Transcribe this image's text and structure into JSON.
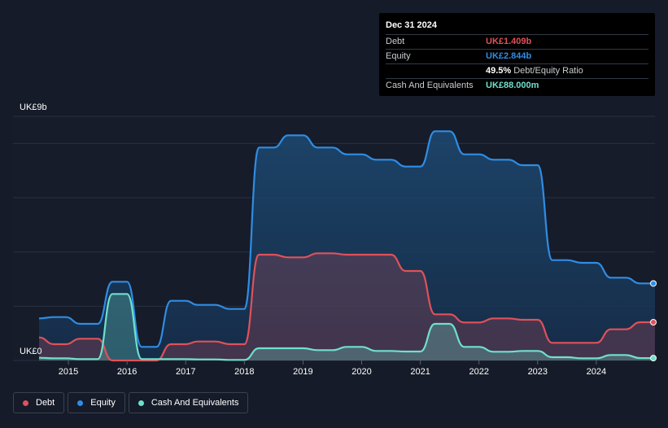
{
  "colors": {
    "debt": "#e05159",
    "equity": "#2f8de4",
    "cash": "#6fe0cc",
    "background": "#151b28",
    "grid": "#2a3140"
  },
  "tooltip": {
    "date": "Dec 31 2024",
    "debt_label": "Debt",
    "debt_value": "UK£1.409b",
    "equity_label": "Equity",
    "equity_value": "UK£2.844b",
    "ratio_value": "49.5%",
    "ratio_label": "Debt/Equity Ratio",
    "cash_label": "Cash And Equivalents",
    "cash_value": "UK£88.000m"
  },
  "legend": {
    "debt_label": "Debt",
    "equity_label": "Equity",
    "cash_label": "Cash And Equivalents"
  },
  "chart_data": {
    "type": "area",
    "y_top_label": "UK£9b",
    "y_bottom_label": "UK£0",
    "ylim": [
      0,
      9
    ],
    "xlim": [
      2014.5,
      2025.0
    ],
    "x_ticks": [
      "2015",
      "2016",
      "2017",
      "2018",
      "2019",
      "2020",
      "2021",
      "2022",
      "2023",
      "2024"
    ],
    "grid": true,
    "series": [
      {
        "name": "Equity",
        "x": [
          2014.5,
          2014.75,
          2014.95,
          2015.2,
          2015.5,
          2015.75,
          2016.0,
          2016.25,
          2016.5,
          2016.75,
          2017.0,
          2017.2,
          2017.5,
          2017.75,
          2018.0,
          2018.25,
          2018.5,
          2018.75,
          2019.0,
          2019.25,
          2019.5,
          2019.75,
          2020.0,
          2020.25,
          2020.5,
          2020.75,
          2021.0,
          2021.25,
          2021.5,
          2021.75,
          2022.0,
          2022.25,
          2022.5,
          2022.75,
          2023.0,
          2023.25,
          2023.5,
          2023.75,
          2024.0,
          2024.25,
          2024.5,
          2024.75,
          2025.0
        ],
        "values": [
          1.55,
          1.6,
          1.6,
          1.35,
          1.35,
          2.9,
          2.9,
          0.5,
          0.5,
          2.2,
          2.2,
          2.05,
          2.05,
          1.9,
          1.9,
          7.85,
          7.85,
          8.3,
          8.3,
          7.85,
          7.85,
          7.6,
          7.6,
          7.4,
          7.4,
          7.15,
          7.15,
          8.45,
          8.45,
          7.6,
          7.6,
          7.4,
          7.4,
          7.2,
          7.2,
          3.7,
          3.7,
          3.6,
          3.6,
          3.05,
          3.05,
          2.84,
          2.84
        ]
      },
      {
        "name": "Debt",
        "x": [
          2014.5,
          2014.75,
          2014.95,
          2015.2,
          2015.5,
          2015.75,
          2016.0,
          2016.25,
          2016.5,
          2016.75,
          2017.0,
          2017.2,
          2017.5,
          2017.75,
          2018.0,
          2018.25,
          2018.5,
          2018.75,
          2019.0,
          2019.25,
          2019.5,
          2019.75,
          2020.0,
          2020.25,
          2020.5,
          2020.75,
          2021.0,
          2021.25,
          2021.5,
          2021.75,
          2022.0,
          2022.25,
          2022.5,
          2022.75,
          2023.0,
          2023.25,
          2023.5,
          2023.75,
          2024.0,
          2024.25,
          2024.5,
          2024.75,
          2025.0
        ],
        "values": [
          0.85,
          0.6,
          0.6,
          0.8,
          0.8,
          0.0,
          0.0,
          0.0,
          0.0,
          0.6,
          0.6,
          0.7,
          0.7,
          0.6,
          0.6,
          3.9,
          3.9,
          3.8,
          3.8,
          3.95,
          3.95,
          3.9,
          3.9,
          3.9,
          3.9,
          3.3,
          3.3,
          1.7,
          1.7,
          1.4,
          1.4,
          1.55,
          1.55,
          1.5,
          1.5,
          0.65,
          0.65,
          0.65,
          0.65,
          1.15,
          1.15,
          1.41,
          1.41
        ]
      },
      {
        "name": "Cash And Equivalents",
        "x": [
          2014.5,
          2014.75,
          2014.95,
          2015.2,
          2015.5,
          2015.75,
          2016.0,
          2016.25,
          2016.5,
          2016.75,
          2017.0,
          2017.2,
          2017.5,
          2017.75,
          2018.0,
          2018.25,
          2018.5,
          2018.75,
          2019.0,
          2019.25,
          2019.5,
          2019.75,
          2020.0,
          2020.25,
          2020.5,
          2020.75,
          2021.0,
          2021.25,
          2021.5,
          2021.75,
          2022.0,
          2022.25,
          2022.5,
          2022.75,
          2023.0,
          2023.25,
          2023.5,
          2023.75,
          2024.0,
          2024.25,
          2024.5,
          2024.75,
          2025.0
        ],
        "values": [
          0.1,
          0.08,
          0.08,
          0.05,
          0.05,
          2.45,
          2.45,
          0.05,
          0.05,
          0.05,
          0.05,
          0.04,
          0.04,
          0.02,
          0.02,
          0.45,
          0.45,
          0.45,
          0.45,
          0.38,
          0.38,
          0.5,
          0.5,
          0.35,
          0.35,
          0.33,
          0.33,
          1.35,
          1.35,
          0.5,
          0.5,
          0.32,
          0.32,
          0.35,
          0.35,
          0.12,
          0.12,
          0.08,
          0.08,
          0.2,
          0.2,
          0.088,
          0.088
        ]
      }
    ]
  }
}
